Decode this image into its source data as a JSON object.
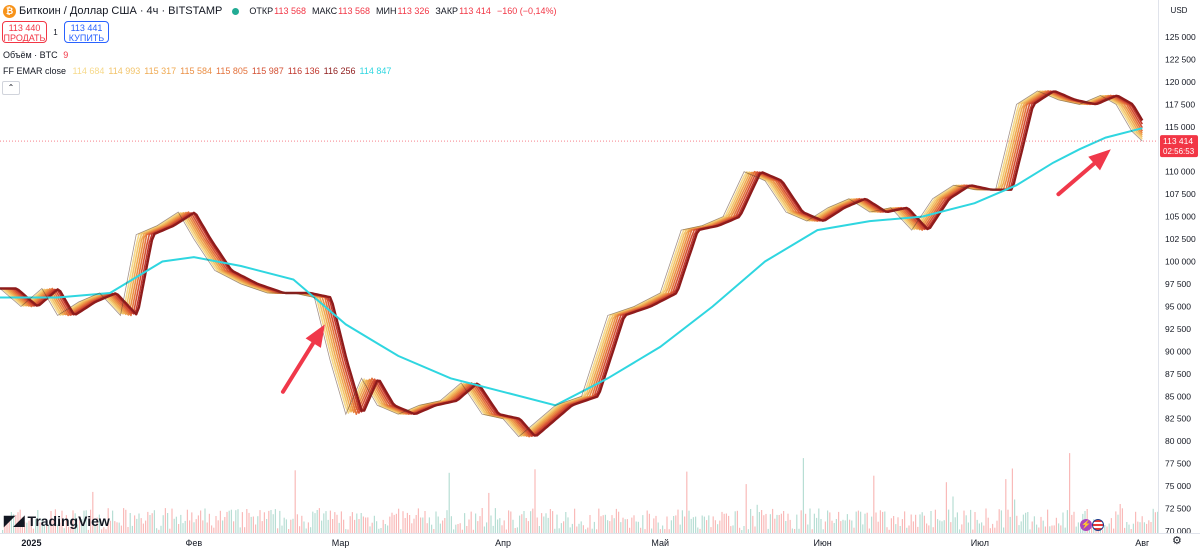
{
  "header": {
    "symbol": "Биткоин / Доллар США · 4ч · BITSTAMP",
    "coin_icon": "bitcoin-icon",
    "open_label": "ОТКР",
    "open_value": "113 568",
    "high_label": "МАКС",
    "high_value": "113 568",
    "low_label": "МИН",
    "low_value": "113 326",
    "close_label": "ЗАКР",
    "close_value": "113 414",
    "change_value": "−160 (−0,14%)",
    "change_color": "#f23645"
  },
  "trade": {
    "sell_price": "113 440",
    "sell_label": "ПРОДАТЬ",
    "spread": "1",
    "buy_price": "113 441",
    "buy_label": "КУПИТЬ"
  },
  "volume_legend": {
    "label": "Объём · BTC",
    "value": "9"
  },
  "ema_legend": {
    "label": "FF EMAR close",
    "values": [
      {
        "text": "114 684",
        "color": "#f6d98a"
      },
      {
        "text": "114 993",
        "color": "#f2c46b"
      },
      {
        "text": "115 317",
        "color": "#efaa52"
      },
      {
        "text": "115 584",
        "color": "#ea8f45"
      },
      {
        "text": "115 805",
        "color": "#e3723c"
      },
      {
        "text": "115 987",
        "color": "#d45134"
      },
      {
        "text": "116 136",
        "color": "#c0362c"
      },
      {
        "text": "116 256",
        "color": "#8e1b1b"
      },
      {
        "text": "114 847",
        "color": "#2fd6e0"
      }
    ]
  },
  "currency": "USD",
  "logo_text": "TradingView",
  "price_tag": {
    "value": "113 414",
    "countdown": "02:56:53",
    "color": "#f23645"
  },
  "chart_data": {
    "type": "line",
    "y_axis_ticks": [
      "125 000",
      "122 500",
      "120 000",
      "117 500",
      "115 000",
      "112 500",
      "110 000",
      "107 500",
      "105 000",
      "102 500",
      "100 000",
      "97 500",
      "95 000",
      "92 500",
      "90 000",
      "87 500",
      "85 000",
      "82 500",
      "80 000",
      "77 500",
      "75 000",
      "72 500",
      "70 000"
    ],
    "ylim": [
      70000,
      125000
    ],
    "y_step": 2500,
    "x_labels": [
      {
        "label": "2025",
        "day": 0
      },
      {
        "label": "Фев",
        "day": 31
      },
      {
        "label": "Мар",
        "day": 59
      },
      {
        "label": "Апр",
        "day": 90
      },
      {
        "label": "Май",
        "day": 120
      },
      {
        "label": "Июн",
        "day": 151
      },
      {
        "label": "Июл",
        "day": 181
      },
      {
        "label": "Авг",
        "day": 212
      }
    ],
    "x_range_days": [
      -6,
      215
    ],
    "price_series": [
      {
        "day": -6,
        "price": 97000
      },
      {
        "day": -2,
        "price": 95000
      },
      {
        "day": 2,
        "price": 97000
      },
      {
        "day": 5,
        "price": 94000
      },
      {
        "day": 9,
        "price": 95500
      },
      {
        "day": 13,
        "price": 96500
      },
      {
        "day": 17,
        "price": 94000
      },
      {
        "day": 20,
        "price": 103000
      },
      {
        "day": 24,
        "price": 104000
      },
      {
        "day": 28,
        "price": 105500
      },
      {
        "day": 31,
        "price": 102500
      },
      {
        "day": 35,
        "price": 99000
      },
      {
        "day": 40,
        "price": 97500
      },
      {
        "day": 45,
        "price": 96500
      },
      {
        "day": 50,
        "price": 96500
      },
      {
        "day": 54,
        "price": 96000
      },
      {
        "day": 57,
        "price": 89000
      },
      {
        "day": 60,
        "price": 83000
      },
      {
        "day": 63,
        "price": 87000
      },
      {
        "day": 66,
        "price": 84000
      },
      {
        "day": 70,
        "price": 83000
      },
      {
        "day": 74,
        "price": 84000
      },
      {
        "day": 78,
        "price": 84500
      },
      {
        "day": 82,
        "price": 86500
      },
      {
        "day": 86,
        "price": 83000
      },
      {
        "day": 90,
        "price": 82500
      },
      {
        "day": 93,
        "price": 80500
      },
      {
        "day": 96,
        "price": 82000
      },
      {
        "day": 100,
        "price": 84000
      },
      {
        "day": 105,
        "price": 85000
      },
      {
        "day": 110,
        "price": 94000
      },
      {
        "day": 115,
        "price": 95000
      },
      {
        "day": 120,
        "price": 96500
      },
      {
        "day": 124,
        "price": 103500
      },
      {
        "day": 128,
        "price": 104000
      },
      {
        "day": 132,
        "price": 105000
      },
      {
        "day": 136,
        "price": 110000
      },
      {
        "day": 140,
        "price": 109000
      },
      {
        "day": 144,
        "price": 105500
      },
      {
        "day": 148,
        "price": 104500
      },
      {
        "day": 152,
        "price": 106000
      },
      {
        "day": 156,
        "price": 107000
      },
      {
        "day": 160,
        "price": 105500
      },
      {
        "day": 164,
        "price": 106000
      },
      {
        "day": 168,
        "price": 103500
      },
      {
        "day": 172,
        "price": 107000
      },
      {
        "day": 176,
        "price": 108500
      },
      {
        "day": 180,
        "price": 108000
      },
      {
        "day": 184,
        "price": 108000
      },
      {
        "day": 188,
        "price": 117500
      },
      {
        "day": 192,
        "price": 119000
      },
      {
        "day": 196,
        "price": 118000
      },
      {
        "day": 200,
        "price": 117500
      },
      {
        "day": 204,
        "price": 118500
      },
      {
        "day": 207,
        "price": 117500
      },
      {
        "day": 210,
        "price": 114500
      },
      {
        "day": 212,
        "price": 113414
      }
    ],
    "slow_ema": [
      {
        "day": -6,
        "price": 96000
      },
      {
        "day": 5,
        "price": 96000
      },
      {
        "day": 15,
        "price": 96500
      },
      {
        "day": 25,
        "price": 100000
      },
      {
        "day": 31,
        "price": 100500
      },
      {
        "day": 40,
        "price": 99500
      },
      {
        "day": 50,
        "price": 98000
      },
      {
        "day": 60,
        "price": 93000
      },
      {
        "day": 70,
        "price": 89500
      },
      {
        "day": 80,
        "price": 87000
      },
      {
        "day": 90,
        "price": 85500
      },
      {
        "day": 100,
        "price": 84000
      },
      {
        "day": 110,
        "price": 87000
      },
      {
        "day": 120,
        "price": 90500
      },
      {
        "day": 130,
        "price": 95000
      },
      {
        "day": 140,
        "price": 100000
      },
      {
        "day": 150,
        "price": 103500
      },
      {
        "day": 160,
        "price": 104500
      },
      {
        "day": 170,
        "price": 105000
      },
      {
        "day": 180,
        "price": 106500
      },
      {
        "day": 188,
        "price": 108500
      },
      {
        "day": 195,
        "price": 111000
      },
      {
        "day": 200,
        "price": 112500
      },
      {
        "day": 205,
        "price": 113800
      },
      {
        "day": 212,
        "price": 114847
      }
    ],
    "ribbon_lags": [
      0.4,
      0.8,
      1.2,
      1.6,
      2.0,
      2.4,
      2.8,
      3.2
    ],
    "arrows": [
      {
        "from_day": 48,
        "from_price": 85500,
        "to_day": 56,
        "to_price": 93000
      },
      {
        "from_day": 196,
        "from_price": 107500,
        "to_day": 206,
        "to_price": 112500
      }
    ],
    "grid": false,
    "current_price": 113414
  }
}
